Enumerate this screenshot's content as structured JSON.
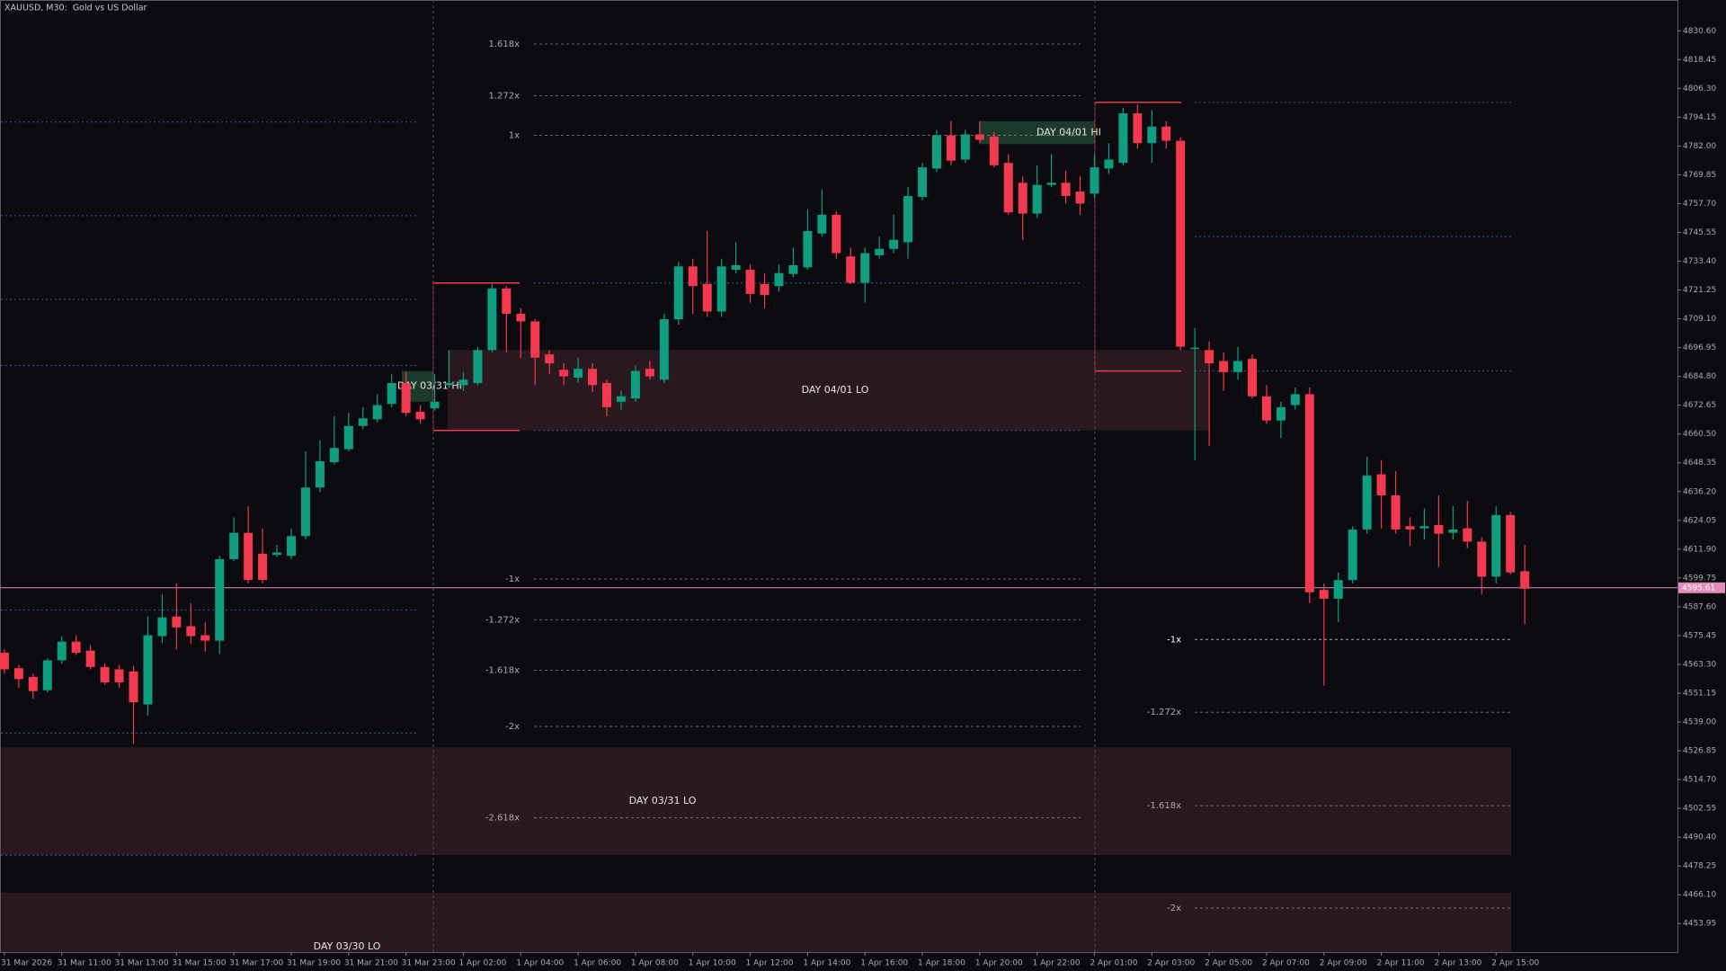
{
  "chart_data": {
    "type": "candlestick",
    "title": "XAUUSD, M30:  Gold vs US Dollar",
    "up_color": "#0f9e80",
    "down_color": "#f2394f",
    "categories": [
      "31 Mar 2026",
      null,
      null,
      null,
      "31 Mar 11:00",
      null,
      null,
      null,
      "31 Mar 13:00",
      null,
      null,
      null,
      "31 Mar 15:00",
      null,
      null,
      null,
      "31 Mar 17:00",
      null,
      null,
      null,
      "31 Mar 19:00",
      null,
      null,
      null,
      "31 Mar 21:00",
      null,
      null,
      null,
      "31 Mar 23:00",
      null,
      null,
      null,
      "1 Apr 02:00",
      null,
      null,
      null,
      "1 Apr 04:00",
      null,
      null,
      null,
      "1 Apr 06:00",
      null,
      null,
      null,
      "1 Apr 08:00",
      null,
      null,
      null,
      "1 Apr 10:00",
      null,
      null,
      null,
      "1 Apr 12:00",
      null,
      null,
      null,
      "1 Apr 14:00",
      null,
      null,
      null,
      "1 Apr 16:00",
      null,
      null,
      null,
      "1 Apr 18:00",
      null,
      null,
      null,
      "1 Apr 20:00",
      null,
      null,
      null,
      "1 Apr 22:00",
      null,
      null,
      null,
      "2 Apr 01:00",
      null,
      null,
      null,
      "2 Apr 03:00",
      null,
      null,
      null,
      "2 Apr 05:00",
      null,
      null,
      null,
      "2 Apr 07:00",
      null,
      null,
      null,
      "2 Apr 09:00",
      null,
      null,
      null,
      "2 Apr 11:00",
      null,
      null,
      null,
      "2 Apr 13:00",
      null,
      null,
      null,
      "2 Apr 15:00",
      null,
      null
    ],
    "open": [
      4568.2,
      4561.7,
      4558.0,
      4552.4,
      4565.0,
      4572.9,
      4569.1,
      4562.2,
      4561.2,
      4560.3,
      4546.4,
      4575.2,
      4583.5,
      4579.4,
      4575.6,
      4573.3,
      4607.7,
      4618.8,
      4610.0,
      4609.5,
      4609.1,
      4617.4,
      4637.9,
      4648.6,
      4654.1,
      4663.9,
      4666.7,
      4673.2,
      4682.0,
      4669.9,
      4671.3,
      4681.1,
      4681.1,
      4682.0,
      4695.9,
      4721.9,
      4711.2,
      4708.0,
      4694.1,
      4687.6,
      4684.3,
      4688.0,
      4682.0,
      4674.1,
      4675.5,
      4688.0,
      4683.4,
      4708.9,
      4731.2,
      4723.8,
      4712.2,
      4729.8,
      4729.8,
      4723.8,
      4722.9,
      4728.0,
      4730.8,
      4745.1,
      4753.0,
      4735.4,
      4724.3,
      4735.9,
      4738.6,
      4741.4,
      4760.5,
      4772.5,
      4786.5,
      4776.3,
      4786.9,
      4786.0,
      4774.9,
      4766.5,
      4753.5,
      4765.6,
      4766.5,
      4762.8,
      4761.9,
      4772.5,
      4774.9,
      4795.8,
      4783.2,
      4790.2,
      4784.2,
      4696.4,
      4695.9,
      4691.3,
      4686.6,
      4692.2,
      4676.4,
      4666.2,
      4672.7,
      4677.3,
      4594.7,
      4591.0,
      4598.9,
      4620.2,
      4643.5,
      4634.6,
      4621.6,
      4620.7,
      4622.1,
      4618.8,
      4620.7,
      4615.1,
      4600.3,
      4626.3,
      4602.6
    ],
    "high": [
      4569.6,
      4563.1,
      4559.4,
      4565.9,
      4575.2,
      4575.6,
      4571.5,
      4563.6,
      4563.1,
      4562.6,
      4583.5,
      4592.8,
      4597.5,
      4589.1,
      4581.2,
      4609.1,
      4625.3,
      4630.0,
      4620.7,
      4613.7,
      4620.7,
      4653.2,
      4657.8,
      4668.0,
      4669.4,
      4671.8,
      4677.3,
      4685.7,
      4686.6,
      4672.7,
      4685.7,
      4695.9,
      4686.6,
      4697.3,
      4723.8,
      4722.9,
      4713.6,
      4708.9,
      4695.9,
      4690.3,
      4692.7,
      4690.3,
      4683.4,
      4678.7,
      4689.4,
      4691.3,
      4711.2,
      4733.1,
      4734.5,
      4746.1,
      4734.5,
      4741.4,
      4732.1,
      4728.4,
      4732.1,
      4739.1,
      4755.4,
      4763.7,
      4754.4,
      4739.1,
      4739.1,
      4743.8,
      4753.0,
      4764.7,
      4774.9,
      4788.8,
      4792.5,
      4788.8,
      4792.5,
      4787.9,
      4778.6,
      4769.3,
      4773.9,
      4778.6,
      4771.6,
      4769.3,
      4778.6,
      4783.2,
      4798.1,
      4799.5,
      4797.2,
      4792.5,
      4785.6,
      4705.2,
      4699.6,
      4695.0,
      4697.3,
      4694.1,
      4681.1,
      4674.1,
      4680.1,
      4680.1,
      4597.5,
      4602.1,
      4621.6,
      4650.9,
      4649.5,
      4644.8,
      4625.3,
      4629.1,
      4634.6,
      4630.0,
      4632.3,
      4617.0,
      4630.0,
      4627.6,
      4613.7
    ],
    "low": [
      4559.4,
      4553.4,
      4548.7,
      4551.5,
      4563.6,
      4567.3,
      4561.2,
      4554.7,
      4553.4,
      4529.7,
      4541.7,
      4572.4,
      4569.6,
      4571.9,
      4568.7,
      4567.7,
      4606.8,
      4597.5,
      4597.5,
      4608.6,
      4607.7,
      4616.0,
      4636.0,
      4647.6,
      4653.2,
      4662.5,
      4665.3,
      4671.8,
      4668.0,
      4664.8,
      4670.4,
      4680.1,
      4678.7,
      4681.1,
      4695.0,
      4695.0,
      4692.7,
      4681.1,
      4685.7,
      4681.1,
      4682.0,
      4678.3,
      4668.0,
      4670.8,
      4674.1,
      4683.4,
      4682.0,
      4706.6,
      4711.2,
      4709.9,
      4709.9,
      4728.4,
      4715.9,
      4713.6,
      4720.5,
      4726.6,
      4729.8,
      4743.8,
      4734.5,
      4723.8,
      4715.9,
      4734.5,
      4736.8,
      4734.5,
      4759.1,
      4771.2,
      4773.9,
      4774.9,
      4783.2,
      4773.0,
      4753.0,
      4742.4,
      4751.6,
      4764.7,
      4757.7,
      4753.0,
      4760.0,
      4770.2,
      4773.9,
      4780.9,
      4774.9,
      4780.9,
      4695.9,
      4649.5,
      4655.5,
      4678.7,
      4683.4,
      4675.5,
      4664.8,
      4658.8,
      4670.8,
      4589.1,
      4554.3,
      4581.2,
      4597.5,
      4618.4,
      4620.7,
      4618.4,
      4613.3,
      4616.0,
      4604.4,
      4616.0,
      4612.3,
      4592.8,
      4597.5,
      4601.2,
      4580.3
    ],
    "close": [
      4561.2,
      4557.1,
      4552.0,
      4565.0,
      4572.9,
      4568.2,
      4562.2,
      4555.7,
      4555.7,
      4547.3,
      4575.6,
      4583.1,
      4578.9,
      4575.2,
      4573.3,
      4607.7,
      4618.8,
      4598.9,
      4598.9,
      4610.5,
      4617.4,
      4637.9,
      4649.0,
      4654.6,
      4663.9,
      4667.1,
      4672.7,
      4682.0,
      4669.4,
      4666.7,
      4674.1,
      4682.0,
      4683.4,
      4695.9,
      4721.9,
      4711.2,
      4708.0,
      4692.7,
      4690.3,
      4684.8,
      4688.0,
      4681.1,
      4671.8,
      4676.4,
      4687.1,
      4684.8,
      4708.9,
      4731.2,
      4722.9,
      4712.2,
      4731.2,
      4731.7,
      4719.6,
      4719.1,
      4728.4,
      4731.7,
      4746.1,
      4753.0,
      4736.8,
      4724.3,
      4736.8,
      4738.6,
      4742.4,
      4760.9,
      4773.0,
      4786.5,
      4775.8,
      4786.9,
      4784.6,
      4773.9,
      4754.0,
      4753.5,
      4765.6,
      4766.5,
      4760.9,
      4757.7,
      4773.0,
      4776.3,
      4795.8,
      4783.2,
      4790.2,
      4784.2,
      4697.3,
      4696.9,
      4690.3,
      4686.6,
      4691.3,
      4676.4,
      4666.2,
      4671.8,
      4677.3,
      4593.7,
      4591.0,
      4598.9,
      4620.2,
      4643.0,
      4634.6,
      4620.2,
      4620.2,
      4621.6,
      4618.4,
      4620.2,
      4615.1,
      4600.3,
      4626.3,
      4602.1,
      4595.2
    ],
    "ylim": [
      4441.9,
      4843.6
    ],
    "yticks": [
      {
        "value": 4830.6,
        "label": "4830.60"
      },
      4818.45,
      {
        "value": 4806.3,
        "label": "4806.30"
      },
      4794.15,
      {
        "value": 4782,
        "label": "4782.00"
      },
      4769.85,
      {
        "value": 4757.7,
        "label": "4757.70"
      },
      4745.55,
      {
        "value": 4733.4,
        "label": "4733.40"
      },
      4721.25,
      {
        "value": 4709.1,
        "label": "4709.10"
      },
      4696.95,
      {
        "value": 4684.8,
        "label": "4684.80"
      },
      4672.65,
      {
        "value": 4660.5,
        "label": "4660.50"
      },
      4648.35,
      {
        "value": 4636.2,
        "label": "4636.20"
      },
      4624.05,
      {
        "value": 4611.9,
        "label": "4611.90"
      },
      4599.75,
      {
        "value": 4587.6,
        "label": "4587.60"
      },
      4575.45,
      {
        "value": 4563.3,
        "label": "4563.30"
      },
      4551.15,
      {
        "value": 4539,
        "label": "4539.00"
      },
      4526.85,
      {
        "value": 4514.7,
        "label": "4514.70"
      },
      4502.55,
      {
        "value": 4490.4,
        "label": "4490.40"
      },
      4478.25,
      {
        "value": 4466.1,
        "label": "4466.10"
      },
      4453.95
    ],
    "bid": 4595.61,
    "bid_color": "#e38cb8",
    "fib_levels": [
      [
        {
          "label": "1.618x",
          "value": 4825.0
        },
        {
          "label": "1.272x",
          "value": 4803.2
        },
        {
          "label": "1x",
          "value": 4786.5
        },
        {
          "label": "-1x",
          "value": 4599.3
        },
        {
          "label": "-1.272x",
          "value": 4582.1
        },
        {
          "label": "-1.618x",
          "value": 4560.8
        },
        {
          "label": "-2x",
          "value": 4537.1
        },
        {
          "label": "-2.618x",
          "value": 4498.6
        }
      ],
      [
        {
          "label": "-1x",
          "value": 4573.8
        },
        {
          "label": "-1.272x",
          "value": 4543.1
        },
        {
          "label": "-1.618x",
          "value": 4503.7
        },
        {
          "label": "-2x",
          "value": 4460.5
        }
      ]
    ],
    "dotted_levels": [
      [
        4792.1,
        4752.6,
        4717.3,
        4689.4,
        4586.3,
        4534.3,
        4482.8
      ],
      [
        4724.2,
        4662.0
      ],
      [
        4800.4,
        4743.8,
        4687.1
      ]
    ],
    "range_boxes": [
      {
        "high": 4724.2,
        "low": 4662.0
      },
      {
        "high": 4800.4,
        "low": 4687.1
      }
    ],
    "zones": [
      {
        "label": "DAY 04/01 LO",
        "top": 4695.9,
        "bottom": 4662.0,
        "color": "#2a1a1f"
      },
      {
        "label": "DAY 03/31 LO",
        "top": 4528.3,
        "bottom": 4482.8,
        "color": "#2a1a1f"
      },
      {
        "label": "DAY 03/30 LO",
        "top": 4467.0,
        "bottom": 4441.9,
        "color": "#2a1a1f"
      },
      {
        "label": "DAY 04/01 HI",
        "top": 4792.5,
        "bottom": 4782.8,
        "color": "#1d3b2c"
      },
      {
        "label": "DAY 03/31 HI",
        "top": 4687.1,
        "bottom": 4674.1,
        "color": "#1d3b2c"
      }
    ]
  }
}
